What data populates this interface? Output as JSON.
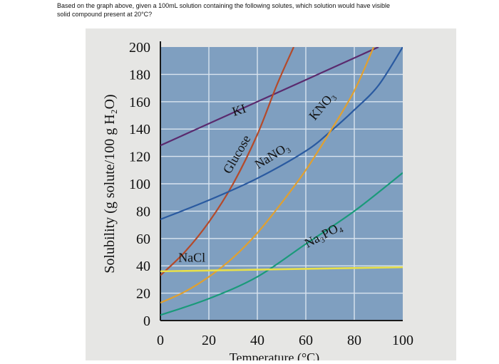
{
  "question": {
    "line1": "Based on the graph above, given a 100mL solution containing the following solutes, which solution would have visible",
    "line2": "solid compound present at 20°C?"
  },
  "chart_data": {
    "type": "line",
    "title": "",
    "xlabel": "Temperature (°C)",
    "ylabel": "Solubility (g solute/100 g H₂O)",
    "xlim": [
      0,
      100
    ],
    "ylim": [
      0,
      200
    ],
    "x_ticks": [
      "0",
      "20",
      "40",
      "60",
      "80",
      "100"
    ],
    "y_ticks": [
      "0",
      "20",
      "40",
      "60",
      "80",
      "100",
      "120",
      "140",
      "160",
      "180",
      "200"
    ],
    "grid": true,
    "background": "#7f9fc0",
    "series": [
      {
        "name": "KI",
        "color": "#5a2a6e",
        "points": [
          [
            0,
            128
          ],
          [
            20,
            144
          ],
          [
            40,
            160
          ],
          [
            60,
            176
          ],
          [
            80,
            192
          ],
          [
            90,
            200
          ]
        ]
      },
      {
        "name": "Glucose",
        "color": "#b44a2a",
        "points": [
          [
            0,
            33
          ],
          [
            10,
            50
          ],
          [
            20,
            72
          ],
          [
            30,
            100
          ],
          [
            40,
            136
          ],
          [
            48,
            172
          ],
          [
            55,
            200
          ]
        ]
      },
      {
        "name": "NaNO₃",
        "color": "#2a5aa0",
        "points": [
          [
            0,
            74
          ],
          [
            20,
            88
          ],
          [
            40,
            104
          ],
          [
            60,
            124
          ],
          [
            70,
            138
          ],
          [
            80,
            154
          ],
          [
            90,
            172
          ],
          [
            100,
            200
          ]
        ]
      },
      {
        "name": "KNO₃",
        "color": "#e0a030",
        "points": [
          [
            0,
            13
          ],
          [
            10,
            21
          ],
          [
            20,
            32
          ],
          [
            30,
            46
          ],
          [
            40,
            64
          ],
          [
            50,
            86
          ],
          [
            60,
            110
          ],
          [
            70,
            138
          ],
          [
            80,
            168
          ],
          [
            88,
            200
          ]
        ]
      },
      {
        "name": "Na₃PO₄",
        "color": "#1a9a7a",
        "points": [
          [
            0,
            4
          ],
          [
            20,
            16
          ],
          [
            40,
            32
          ],
          [
            60,
            56
          ],
          [
            80,
            80
          ],
          [
            100,
            108
          ]
        ]
      },
      {
        "name": "NaCl",
        "color": "#e8e04a",
        "points": [
          [
            0,
            36
          ],
          [
            100,
            39
          ]
        ]
      }
    ],
    "annotations": [
      {
        "text": "KI",
        "x": 33,
        "y": 151
      },
      {
        "text": "Glucose",
        "x": 33,
        "y": 120
      },
      {
        "text": "NaNO₃",
        "x": 47,
        "y": 118
      },
      {
        "text": "KNO₃",
        "x": 68,
        "y": 155
      },
      {
        "text": "Na₃PO₄",
        "x": 68,
        "y": 60
      },
      {
        "text": "NaCl",
        "x": 13,
        "y": 43
      }
    ]
  }
}
